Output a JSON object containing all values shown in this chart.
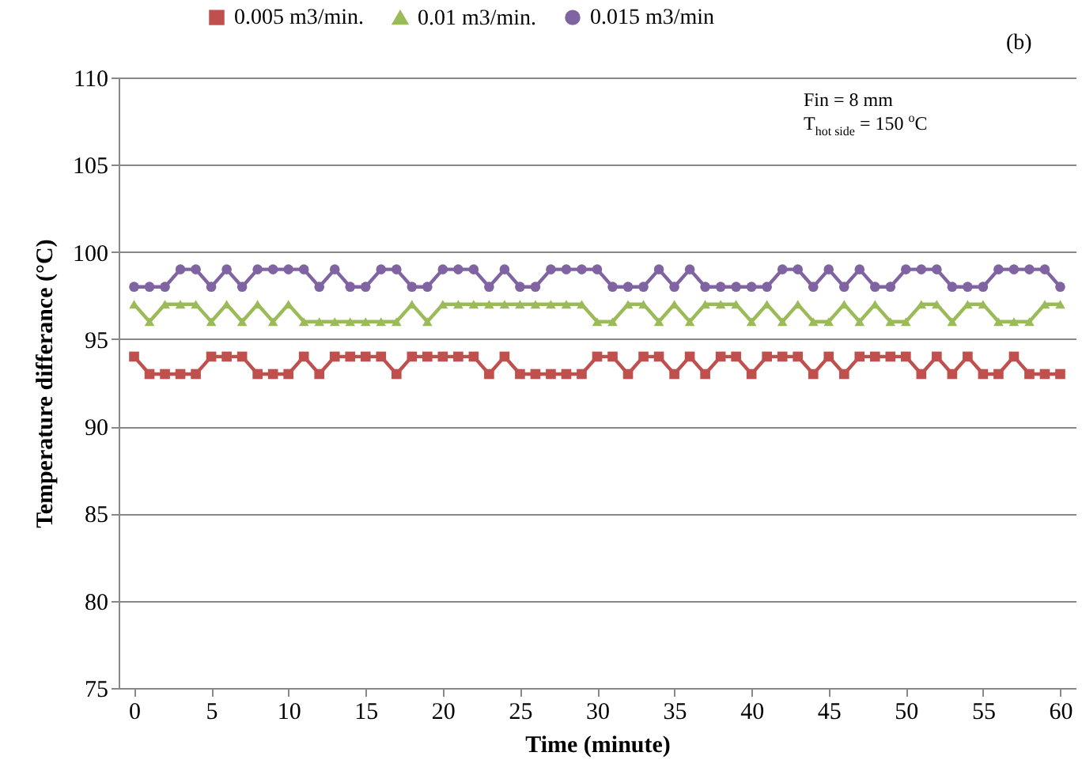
{
  "chart_data": {
    "type": "line",
    "xlabel": "Time (minute)",
    "ylabel": "Temperature differance (°C)",
    "x": [
      0,
      1,
      2,
      3,
      4,
      5,
      6,
      7,
      8,
      9,
      10,
      11,
      12,
      13,
      14,
      15,
      16,
      17,
      18,
      19,
      20,
      21,
      22,
      23,
      24,
      25,
      26,
      27,
      28,
      29,
      30,
      31,
      32,
      33,
      34,
      35,
      36,
      37,
      38,
      39,
      40,
      41,
      42,
      43,
      44,
      45,
      46,
      47,
      48,
      49,
      50,
      51,
      52,
      53,
      54,
      55,
      56,
      57,
      58,
      59,
      60
    ],
    "xlim": [
      -1,
      61
    ],
    "xticks": [
      0,
      5,
      10,
      15,
      20,
      25,
      30,
      35,
      40,
      45,
      50,
      55,
      60
    ],
    "ylim": [
      75,
      110
    ],
    "yticks": [
      75,
      80,
      85,
      90,
      95,
      100,
      105,
      110
    ],
    "grid": "y",
    "legend": "top",
    "line_style": "solid",
    "series": [
      {
        "name": "0.005 m3/min.",
        "color": "#c0504d",
        "marker": "square",
        "values": [
          94,
          93,
          93,
          93,
          93,
          94,
          94,
          94,
          93,
          93,
          93,
          94,
          93,
          94,
          94,
          94,
          94,
          93,
          94,
          94,
          94,
          94,
          94,
          93,
          94,
          93,
          93,
          93,
          93,
          93,
          94,
          94,
          93,
          94,
          94,
          93,
          94,
          93,
          94,
          94,
          93,
          94,
          94,
          94,
          93,
          94,
          93,
          94,
          94,
          94,
          94,
          93,
          94,
          93,
          94,
          93,
          93,
          94,
          93,
          93,
          93
        ]
      },
      {
        "name": "0.01 m3/min.",
        "color": "#9bbb59",
        "marker": "triangle",
        "values": [
          97,
          96,
          97,
          97,
          97,
          96,
          97,
          96,
          97,
          96,
          97,
          96,
          96,
          96,
          96,
          96,
          96,
          96,
          97,
          96,
          97,
          97,
          97,
          97,
          97,
          97,
          97,
          97,
          97,
          97,
          96,
          96,
          97,
          97,
          96,
          97,
          96,
          97,
          97,
          97,
          96,
          97,
          96,
          97,
          96,
          96,
          97,
          96,
          97,
          96,
          96,
          97,
          97,
          96,
          97,
          97,
          96,
          96,
          96,
          97,
          97
        ]
      },
      {
        "name": "0.015 m3/min",
        "color": "#8064a2",
        "marker": "circle",
        "values": [
          98,
          98,
          98,
          99,
          99,
          98,
          99,
          98,
          99,
          99,
          99,
          99,
          98,
          99,
          98,
          98,
          99,
          99,
          98,
          98,
          99,
          99,
          99,
          98,
          99,
          98,
          98,
          99,
          99,
          99,
          99,
          98,
          98,
          98,
          99,
          98,
          99,
          98,
          98,
          98,
          98,
          98,
          99,
          99,
          98,
          99,
          98,
          99,
          98,
          98,
          99,
          99,
          99,
          98,
          98,
          98,
          99,
          99,
          99,
          99,
          98
        ]
      }
    ],
    "annotations": [
      "(b)",
      "Fin = 8 mm",
      "T$_{hot side}$ = 150 $^{o}$C"
    ]
  }
}
